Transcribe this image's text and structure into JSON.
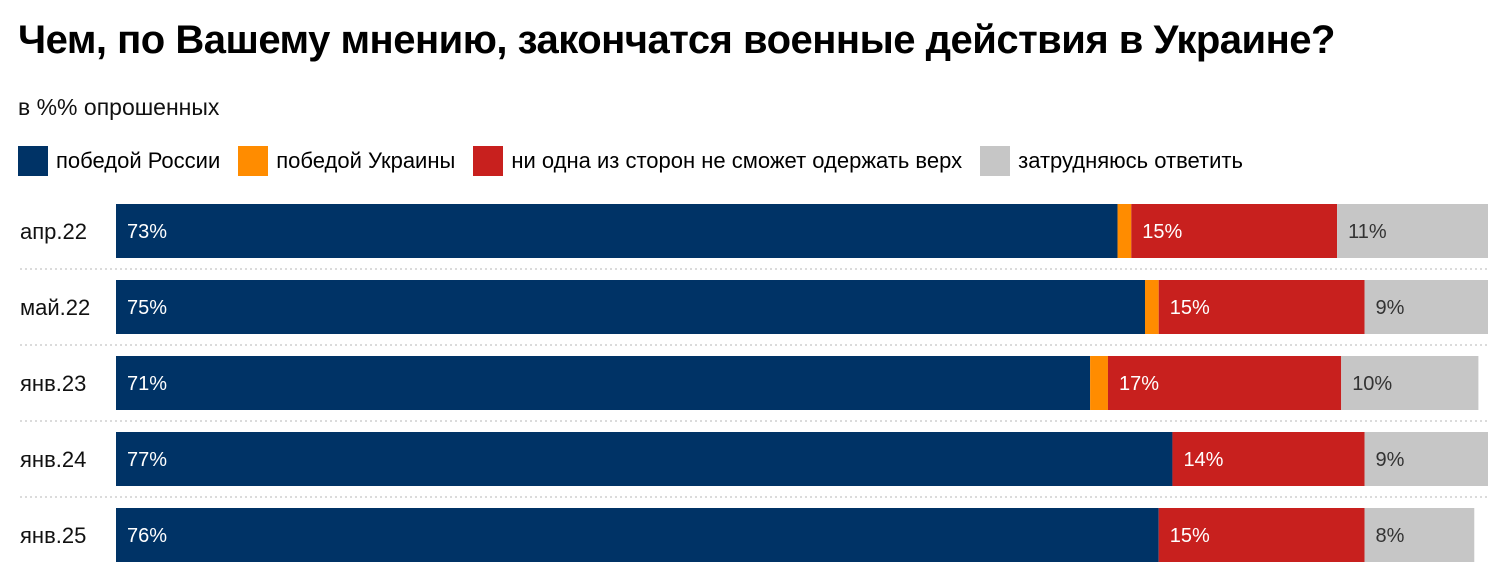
{
  "chart_data": {
    "type": "bar",
    "orientation": "horizontal",
    "stacked": true,
    "title": "Чем, по Вашему мнению, закончатся военные действия в Украине?",
    "subtitle": "в %% опрошенных",
    "categories": [
      "апр.22",
      "май.22",
      "янв.23",
      "янв.24",
      "янв.25"
    ],
    "series": [
      {
        "name": "победой России",
        "color": "#003366",
        "values": [
          73,
          75,
          71,
          77,
          76
        ],
        "labels": [
          "73%",
          "75%",
          "71%",
          "77%",
          "76%"
        ],
        "label_color": "#ffffff"
      },
      {
        "name": "победой Украины",
        "color": "#ff8c00",
        "values": [
          1,
          1,
          1.3,
          0,
          0
        ],
        "labels": [
          "",
          "",
          "",
          "",
          ""
        ],
        "label_color": "#ffffff"
      },
      {
        "name": "ни одна из сторон не сможет одержать верх",
        "color": "#c8201e",
        "values": [
          15,
          15,
          17,
          14,
          15
        ],
        "labels": [
          "15%",
          "15%",
          "17%",
          "14%",
          "15%"
        ],
        "label_color": "#ffffff"
      },
      {
        "name": "затрудняюсь ответить",
        "color": "#c6c6c6",
        "values": [
          11,
          9,
          10,
          9,
          8
        ],
        "labels": [
          "11%",
          "9%",
          "10%",
          "9%",
          "8%"
        ],
        "label_color": "#333333"
      }
    ],
    "xlim": [
      0,
      100
    ],
    "grid": false,
    "legend_position": "top-left"
  }
}
